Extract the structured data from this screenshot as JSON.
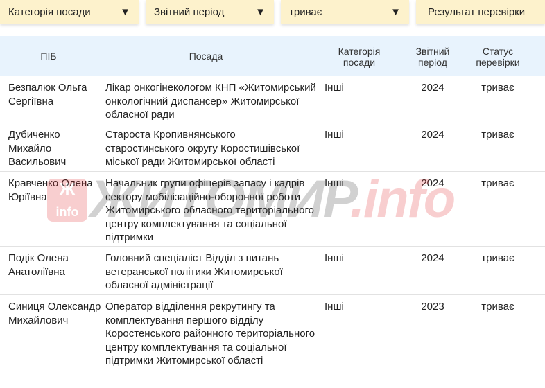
{
  "filters": [
    {
      "label": "Категорія посади",
      "has_arrow": true
    },
    {
      "label": "Звітний період",
      "has_arrow": true
    },
    {
      "label": "триває",
      "has_arrow": true
    },
    {
      "label": "Результат перевірки",
      "has_arrow": false
    }
  ],
  "arrow_glyph": "▼",
  "table": {
    "headers": [
      "ПІБ",
      "Посада",
      "Категорія посади",
      "Звітний період",
      "Статус перевірки"
    ],
    "rows": [
      {
        "name": "Безпалюк Ольга Сергіївна",
        "position": "Лікар онкогінекологом КНП «Житомирський онкологічний диспансер» Житомирської обласної ради",
        "category": "Інші",
        "period": "2024",
        "status": "триває"
      },
      {
        "name": "Дубиченко Михайло Васильович",
        "position": "Староста Кропивнянського старостинського округу Коростишівської міської ради Житомирської області",
        "category": "Інші",
        "period": "2024",
        "status": "триває"
      },
      {
        "name": "Кравченко Олена Юріївна",
        "position": "Начальник групи офіцерів запасу і кадрів сектору мобілізаційно-оборонної роботи Житомирського обласного територіального центру комплектування та соціальної підтримки",
        "category": "Інші",
        "period": "2024",
        "status": "триває"
      },
      {
        "name": "Подік Олена Анатоліївна",
        "position": "Головний спеціаліст Відділ з питань ветеранської політики Житомирської обласної адміністрації",
        "category": "Інші",
        "period": "2024",
        "status": "триває"
      },
      {
        "name": "Синиця Олександр Михайлович",
        "position": "Оператор відділення рекрутингу та комплектування першого відділу Коростенського районного територіального центру комплектування та соціальної підтримки Житомирської області",
        "category": "Інші",
        "period": "2023",
        "status": "триває"
      }
    ]
  },
  "watermark": {
    "main": "ЖИТОМИР",
    "suffix": ".info",
    "badge": "Ж info"
  }
}
